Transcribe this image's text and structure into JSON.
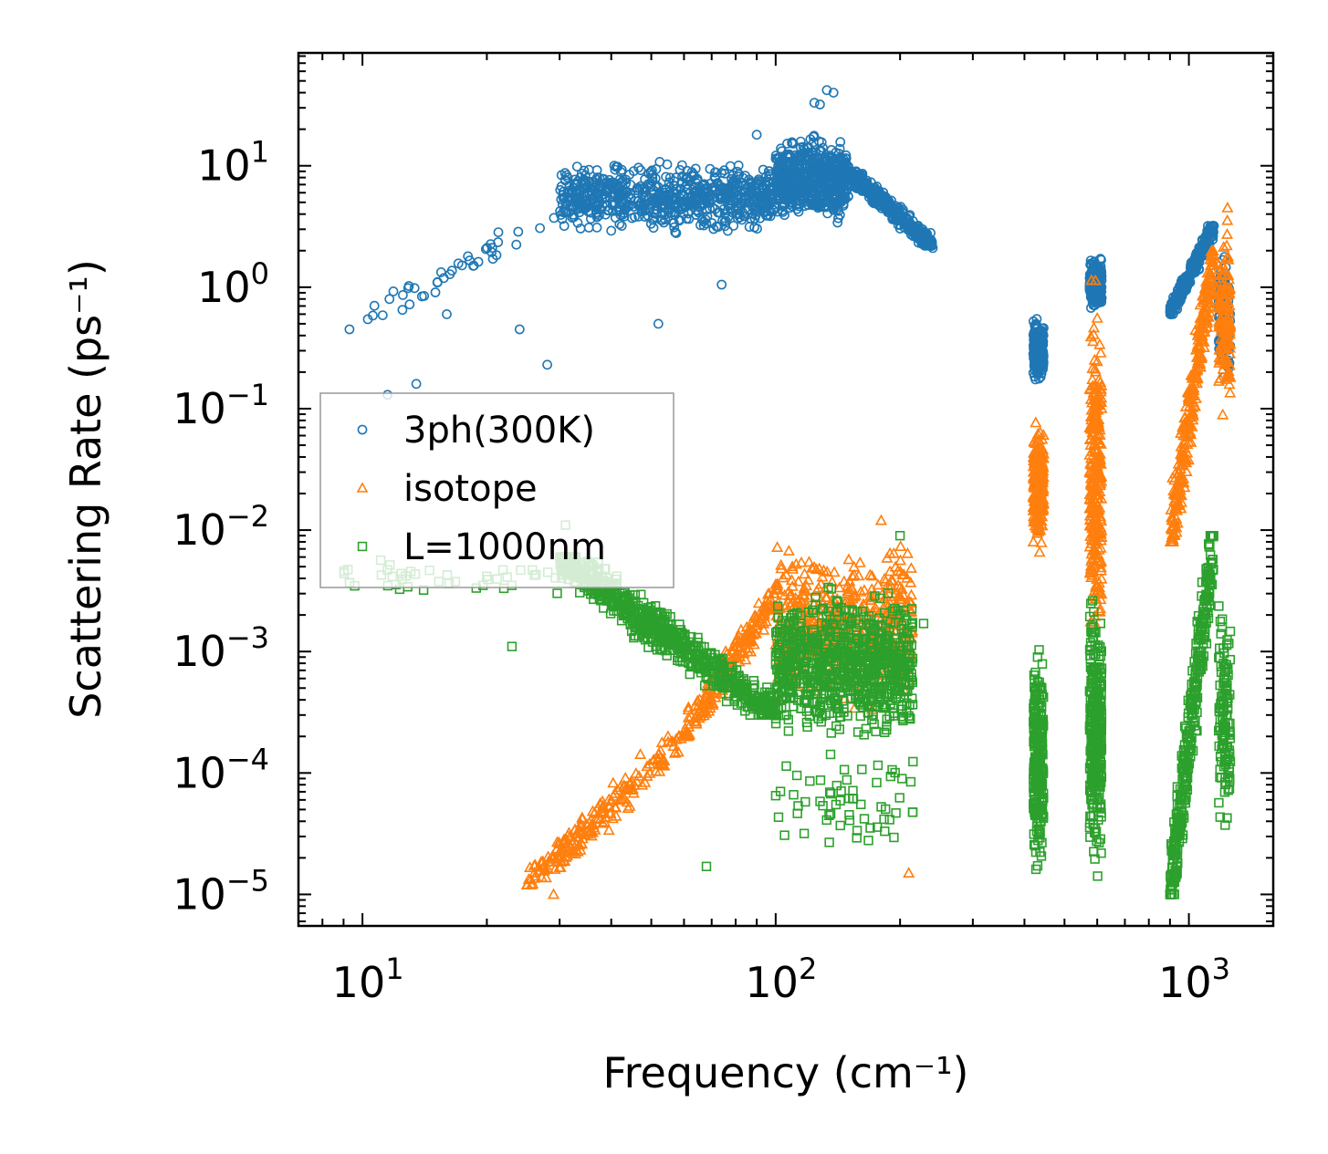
{
  "chart_data": {
    "type": "scatter",
    "xscale": "log",
    "yscale": "log",
    "xlim": [
      7,
      1600
    ],
    "ylim": [
      5.5e-06,
      85
    ],
    "xlabel": "Frequency (cm⁻¹)",
    "ylabel": "Scattering Rate (ps⁻¹)",
    "x_tick_values": [
      10,
      100,
      1000
    ],
    "x_tick_labels": [
      {
        "base": "10",
        "exp": "1"
      },
      {
        "base": "10",
        "exp": "2"
      },
      {
        "base": "10",
        "exp": "3"
      }
    ],
    "y_tick_values": [
      1e-05,
      0.0001,
      0.001,
      0.01,
      0.1,
      1,
      10
    ],
    "y_tick_labels": [
      {
        "base": "10",
        "exp": "−5"
      },
      {
        "base": "10",
        "exp": "−4"
      },
      {
        "base": "10",
        "exp": "−3"
      },
      {
        "base": "10",
        "exp": "−2"
      },
      {
        "base": "10",
        "exp": "−1"
      },
      {
        "base": "10",
        "exp": "0"
      },
      {
        "base": "10",
        "exp": "1"
      }
    ],
    "legend_position": "center-left",
    "series": [
      {
        "name": "3ph(300K)",
        "marker": "circle",
        "color": "#1f77b4",
        "clusters": [
          {
            "x": [
              9.3,
              30
            ],
            "y": [
              0.45,
              4.0
            ],
            "n": 40,
            "trend": "rising"
          },
          {
            "x": [
              30,
              100
            ],
            "y": [
              2.5,
              12
            ],
            "n": 700,
            "trend": "flat"
          },
          {
            "x": [
              100,
              150
            ],
            "y": [
              3.0,
              20
            ],
            "n": 600,
            "trend": "flat"
          },
          {
            "x": [
              150,
              240
            ],
            "y": [
              2.2,
              9
            ],
            "n": 400,
            "trend": "falling"
          },
          {
            "x": [
              420,
              445
            ],
            "y": [
              0.15,
              0.6
            ],
            "n": 220,
            "trend": "flat"
          },
          {
            "x": [
              575,
              615
            ],
            "y": [
              0.6,
              1.9
            ],
            "n": 220,
            "trend": "flat"
          },
          {
            "x": [
              900,
              1150
            ],
            "y": [
              0.6,
              3.2
            ],
            "n": 300,
            "trend": "rising"
          },
          {
            "x": [
              1180,
              1260
            ],
            "y": [
              0.14,
              2.2
            ],
            "n": 120,
            "trend": "flat"
          }
        ],
        "points": [
          {
            "x": 9.3,
            "y": 0.45
          },
          {
            "x": 11.5,
            "y": 0.13
          },
          {
            "x": 13.5,
            "y": 0.16
          },
          {
            "x": 28,
            "y": 0.23
          },
          {
            "x": 74,
            "y": 1.05
          },
          {
            "x": 90,
            "y": 18
          },
          {
            "x": 52,
            "y": 0.5
          },
          {
            "x": 133,
            "y": 42
          },
          {
            "x": 138,
            "y": 40
          },
          {
            "x": 124,
            "y": 33
          },
          {
            "x": 128,
            "y": 32
          },
          {
            "x": 240,
            "y": 2.1
          },
          {
            "x": 24,
            "y": 0.45
          },
          {
            "x": 16,
            "y": 0.6
          },
          {
            "x": 18,
            "y": 1.8
          }
        ]
      },
      {
        "name": "isotope",
        "marker": "triangle",
        "color": "#ff7f0e",
        "clusters": [
          {
            "x": [
              25,
              60
            ],
            "y": [
              1.2e-05,
              0.0002
            ],
            "n": 200,
            "trend": "rising"
          },
          {
            "x": [
              60,
              100
            ],
            "y": [
              0.0002,
              0.003
            ],
            "n": 200,
            "trend": "rising"
          },
          {
            "x": [
              100,
              215
            ],
            "y": [
              0.0003,
              0.009
            ],
            "n": 500,
            "trend": "flat"
          },
          {
            "x": [
              420,
              445
            ],
            "y": [
              0.005,
              0.12
            ],
            "n": 250,
            "trend": "flat"
          },
          {
            "x": [
              575,
              615
            ],
            "y": [
              0.0006,
              1.3
            ],
            "n": 300,
            "trend": "flat"
          },
          {
            "x": [
              900,
              1150
            ],
            "y": [
              0.008,
              2.0
            ],
            "n": 300,
            "trend": "rising"
          },
          {
            "x": [
              1180,
              1260
            ],
            "y": [
              0.06,
              4.5
            ],
            "n": 150,
            "trend": "flat"
          }
        ],
        "points": [
          {
            "x": 25,
            "y": 1.2e-05
          },
          {
            "x": 29,
            "y": 1e-05
          },
          {
            "x": 210,
            "y": 1.5e-05
          },
          {
            "x": 180,
            "y": 0.012
          },
          {
            "x": 1240,
            "y": 4.5
          }
        ]
      },
      {
        "name": "L=1000nm",
        "marker": "square",
        "color": "#2ca02c",
        "clusters": [
          {
            "x": [
              9,
              30
            ],
            "y": [
              0.0025,
              0.006
            ],
            "n": 40,
            "trend": "flat"
          },
          {
            "x": [
              30,
              100
            ],
            "y": [
              0.0003,
              0.006
            ],
            "n": 700,
            "trend": "falling"
          },
          {
            "x": [
              100,
              215
            ],
            "y": [
              0.00015,
              0.004
            ],
            "n": 800,
            "trend": "flat"
          },
          {
            "x": [
              100,
              215
            ],
            "y": [
              2e-05,
              0.0002
            ],
            "n": 60,
            "trend": "flat"
          },
          {
            "x": [
              420,
              445
            ],
            "y": [
              1e-05,
              0.0016
            ],
            "n": 250,
            "trend": "flat"
          },
          {
            "x": [
              575,
              615
            ],
            "y": [
              1e-05,
              0.005
            ],
            "n": 300,
            "trend": "flat"
          },
          {
            "x": [
              900,
              1150
            ],
            "y": [
              1e-05,
              0.009
            ],
            "n": 350,
            "trend": "rising"
          },
          {
            "x": [
              1180,
              1260
            ],
            "y": [
              2e-05,
              0.004
            ],
            "n": 120,
            "trend": "flat"
          }
        ],
        "points": [
          {
            "x": 9.3,
            "y": 0.0037
          },
          {
            "x": 11.5,
            "y": 0.0047
          },
          {
            "x": 23,
            "y": 0.0011
          },
          {
            "x": 68,
            "y": 1.7e-05
          },
          {
            "x": 100,
            "y": 6.5e-05
          },
          {
            "x": 228,
            "y": 0.0017
          },
          {
            "x": 200,
            "y": 0.009
          },
          {
            "x": 31,
            "y": 0.011
          }
        ]
      }
    ]
  }
}
